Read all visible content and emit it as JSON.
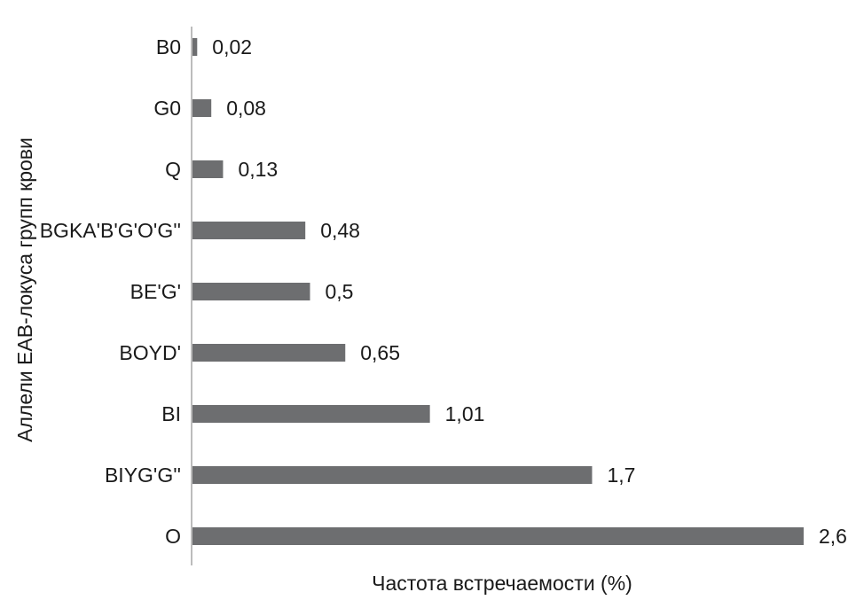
{
  "chart_data": {
    "type": "bar",
    "orientation": "horizontal",
    "categories": [
      "B0",
      "G0",
      "Q",
      "BGKA'B'G'O'G''",
      "BE'G'",
      "BOYD'",
      "BI",
      "BIYG'G''",
      "O"
    ],
    "values": [
      0.02,
      0.08,
      0.13,
      0.48,
      0.5,
      0.65,
      1.01,
      1.7,
      2.6
    ],
    "value_labels": [
      "0,02",
      "0,08",
      "0,13",
      "0,48",
      "0,5",
      "0,65",
      "1,01",
      "1,7",
      "2,6"
    ],
    "xlabel": "Частота встречаемости (%)",
    "ylabel": "Аллели EAB-локуса групп крови",
    "xlim": [
      0,
      2.6
    ],
    "grid": false,
    "bar_color": "#6d6e70",
    "axis_color": "#a6a6a6"
  }
}
